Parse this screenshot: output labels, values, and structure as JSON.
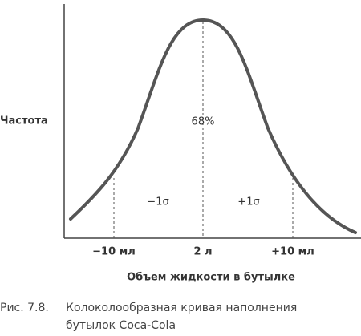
{
  "y_axis_label": "Частота",
  "center_label": "68%",
  "left_sigma": "−1σ",
  "right_sigma": "+1σ",
  "x_labels": [
    "−10 мл",
    "2 л",
    "+10 мл"
  ],
  "x_axis_label": "Объем жидкости в бутылке",
  "caption": {
    "number": "Рис. 7.8.",
    "line1": "Колоколообразная кривая наполнения",
    "line2": "бутылок Coca-Cola"
  }
}
